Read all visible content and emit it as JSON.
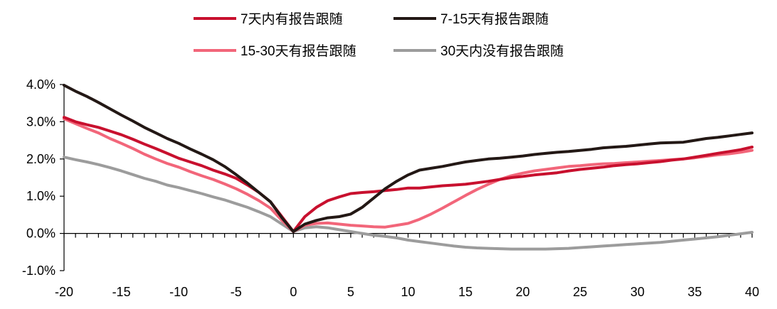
{
  "chart_data": {
    "type": "line",
    "xlim": [
      -20,
      40
    ],
    "ylim": [
      -1.0,
      4.0
    ],
    "x_ticks": [
      "-20",
      "-15",
      "-10",
      "-5",
      "0",
      "5",
      "10",
      "15",
      "20",
      "25",
      "30",
      "35",
      "40"
    ],
    "y_ticks": [
      "4.0%",
      "3.0%",
      "2.0%",
      "1.0%",
      "0.0%",
      "-1.0%"
    ],
    "grid": false,
    "legend_position": "top",
    "series": [
      {
        "name": "7天内有报告跟随",
        "color": "#C8102E",
        "x": [
          -20,
          -19,
          -18,
          -17,
          -16,
          -15,
          -14,
          -13,
          -12,
          -11,
          -10,
          -9,
          -8,
          -7,
          -6,
          -5,
          -4,
          -3,
          -2,
          -1,
          0,
          1,
          2,
          3,
          4,
          5,
          6,
          7,
          8,
          9,
          10,
          11,
          12,
          13,
          14,
          15,
          16,
          17,
          18,
          19,
          20,
          21,
          22,
          23,
          24,
          25,
          26,
          27,
          28,
          29,
          30,
          31,
          32,
          33,
          34,
          35,
          36,
          37,
          38,
          39,
          40
        ],
        "y": [
          3.12,
          3.0,
          2.92,
          2.85,
          2.75,
          2.65,
          2.53,
          2.4,
          2.28,
          2.15,
          2.02,
          1.92,
          1.82,
          1.7,
          1.6,
          1.48,
          1.3,
          1.1,
          0.85,
          0.45,
          0.05,
          0.45,
          0.7,
          0.88,
          0.98,
          1.07,
          1.1,
          1.12,
          1.15,
          1.18,
          1.22,
          1.22,
          1.25,
          1.28,
          1.3,
          1.32,
          1.36,
          1.4,
          1.45,
          1.5,
          1.53,
          1.57,
          1.6,
          1.63,
          1.68,
          1.72,
          1.75,
          1.78,
          1.82,
          1.85,
          1.87,
          1.9,
          1.93,
          1.97,
          2.0,
          2.05,
          2.1,
          2.15,
          2.2,
          2.25,
          2.32
        ]
      },
      {
        "name": "7-15天有报告跟随",
        "color": "#231815",
        "x": [
          -20,
          -19,
          -18,
          -17,
          -16,
          -15,
          -14,
          -13,
          -12,
          -11,
          -10,
          -9,
          -8,
          -7,
          -6,
          -5,
          -4,
          -3,
          -2,
          -1,
          0,
          1,
          2,
          3,
          4,
          5,
          6,
          7,
          8,
          9,
          10,
          11,
          12,
          13,
          14,
          15,
          16,
          17,
          18,
          19,
          20,
          21,
          22,
          23,
          24,
          25,
          26,
          27,
          28,
          29,
          30,
          31,
          32,
          33,
          34,
          35,
          36,
          37,
          38,
          39,
          40
        ],
        "y": [
          3.98,
          3.82,
          3.68,
          3.52,
          3.35,
          3.18,
          3.02,
          2.85,
          2.7,
          2.55,
          2.42,
          2.27,
          2.13,
          1.98,
          1.8,
          1.58,
          1.35,
          1.1,
          0.85,
          0.42,
          0.05,
          0.25,
          0.35,
          0.42,
          0.45,
          0.52,
          0.7,
          0.95,
          1.2,
          1.4,
          1.57,
          1.7,
          1.75,
          1.8,
          1.86,
          1.92,
          1.96,
          2.0,
          2.02,
          2.05,
          2.08,
          2.12,
          2.15,
          2.18,
          2.2,
          2.23,
          2.26,
          2.3,
          2.32,
          2.34,
          2.37,
          2.4,
          2.43,
          2.44,
          2.45,
          2.5,
          2.55,
          2.58,
          2.62,
          2.66,
          2.7
        ]
      },
      {
        "name": "15-30天有报告跟随",
        "color": "#F2667A",
        "x": [
          -20,
          -19,
          -18,
          -17,
          -16,
          -15,
          -14,
          -13,
          -12,
          -11,
          -10,
          -9,
          -8,
          -7,
          -6,
          -5,
          -4,
          -3,
          -2,
          -1,
          0,
          1,
          2,
          3,
          4,
          5,
          6,
          7,
          8,
          9,
          10,
          11,
          12,
          13,
          14,
          15,
          16,
          17,
          18,
          19,
          20,
          21,
          22,
          23,
          24,
          25,
          26,
          27,
          28,
          29,
          30,
          31,
          32,
          33,
          34,
          35,
          36,
          37,
          38,
          39,
          40
        ],
        "y": [
          3.08,
          2.95,
          2.82,
          2.7,
          2.55,
          2.42,
          2.28,
          2.13,
          2.0,
          1.88,
          1.78,
          1.66,
          1.55,
          1.45,
          1.33,
          1.2,
          1.05,
          0.88,
          0.68,
          0.35,
          0.05,
          0.22,
          0.27,
          0.28,
          0.25,
          0.22,
          0.2,
          0.18,
          0.17,
          0.22,
          0.27,
          0.38,
          0.52,
          0.68,
          0.85,
          1.02,
          1.18,
          1.32,
          1.45,
          1.55,
          1.62,
          1.68,
          1.72,
          1.76,
          1.8,
          1.82,
          1.85,
          1.87,
          1.88,
          1.9,
          1.92,
          1.94,
          1.96,
          1.98,
          2.0,
          2.03,
          2.07,
          2.11,
          2.14,
          2.18,
          2.23
        ]
      },
      {
        "name": "30天内没有报告跟随",
        "color": "#9C9C9C",
        "x": [
          -20,
          -19,
          -18,
          -17,
          -16,
          -15,
          -14,
          -13,
          -12,
          -11,
          -10,
          -9,
          -8,
          -7,
          -6,
          -5,
          -4,
          -3,
          -2,
          -1,
          0,
          1,
          2,
          3,
          4,
          5,
          6,
          7,
          8,
          9,
          10,
          11,
          12,
          13,
          14,
          15,
          16,
          17,
          18,
          19,
          20,
          21,
          22,
          23,
          24,
          25,
          26,
          27,
          28,
          29,
          30,
          31,
          32,
          33,
          34,
          35,
          36,
          37,
          38,
          39,
          40
        ],
        "y": [
          2.05,
          1.98,
          1.92,
          1.85,
          1.77,
          1.68,
          1.58,
          1.48,
          1.4,
          1.3,
          1.23,
          1.15,
          1.07,
          0.98,
          0.9,
          0.8,
          0.7,
          0.58,
          0.45,
          0.25,
          0.05,
          0.15,
          0.18,
          0.15,
          0.1,
          0.05,
          0.0,
          -0.05,
          -0.08,
          -0.12,
          -0.18,
          -0.22,
          -0.26,
          -0.3,
          -0.34,
          -0.37,
          -0.39,
          -0.4,
          -0.41,
          -0.42,
          -0.42,
          -0.42,
          -0.42,
          -0.41,
          -0.4,
          -0.38,
          -0.36,
          -0.34,
          -0.32,
          -0.3,
          -0.28,
          -0.26,
          -0.24,
          -0.21,
          -0.18,
          -0.15,
          -0.12,
          -0.09,
          -0.05,
          -0.01,
          0.03
        ]
      }
    ]
  }
}
